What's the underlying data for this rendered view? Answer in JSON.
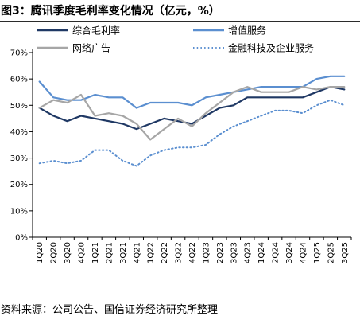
{
  "title": "图3：腾讯季度毛利率变化情况（亿元，%）",
  "source": "资料来源：公司公告、国信证券经济研究所整理",
  "chart_data": {
    "type": "line",
    "categories": [
      "1Q20",
      "2Q20",
      "3Q20",
      "4Q20",
      "1Q21",
      "2Q21",
      "3Q21",
      "4Q21",
      "1Q22",
      "2Q22",
      "3Q22",
      "4Q22",
      "1Q23",
      "2Q23",
      "3Q23",
      "4Q23",
      "1Q24",
      "2Q24",
      "3Q24",
      "4Q24",
      "1Q25",
      "2Q25",
      "3Q25"
    ],
    "y_ticks": [
      "0%",
      "10%",
      "20%",
      "30%",
      "40%",
      "50%",
      "60%",
      "70%"
    ],
    "ylim": [
      0,
      70
    ],
    "legend_placement": "top",
    "series": [
      {
        "name": "综合毛利率",
        "color": "#1f3864",
        "style": "solid",
        "values": [
          49,
          46,
          44,
          46,
          45,
          44,
          43,
          41,
          43,
          45,
          44,
          43,
          46,
          49,
          50,
          53,
          53,
          53,
          53,
          53,
          55,
          57,
          56
        ]
      },
      {
        "name": "增值服务",
        "color": "#5b8fd0",
        "style": "solid",
        "values": [
          59,
          53,
          52,
          52,
          54,
          53,
          53,
          49,
          51,
          51,
          51,
          50,
          53,
          54,
          55,
          56,
          57,
          57,
          57,
          57,
          60,
          61,
          61
        ]
      },
      {
        "name": "网络广告",
        "color": "#a6a6a6",
        "style": "solid",
        "values": [
          49,
          52,
          51,
          54,
          46,
          47,
          46,
          43,
          37,
          41,
          45,
          42,
          47,
          51,
          55,
          57,
          55,
          55,
          55,
          57,
          56,
          57,
          57
        ]
      },
      {
        "name": "金融科技及企业服务",
        "color": "#5b8fd0",
        "style": "dotted",
        "values": [
          28,
          29,
          28,
          29,
          33,
          33,
          29,
          27,
          31,
          33,
          34,
          34,
          35,
          39,
          42,
          44,
          46,
          48,
          48,
          47,
          50,
          52,
          50
        ]
      }
    ]
  }
}
